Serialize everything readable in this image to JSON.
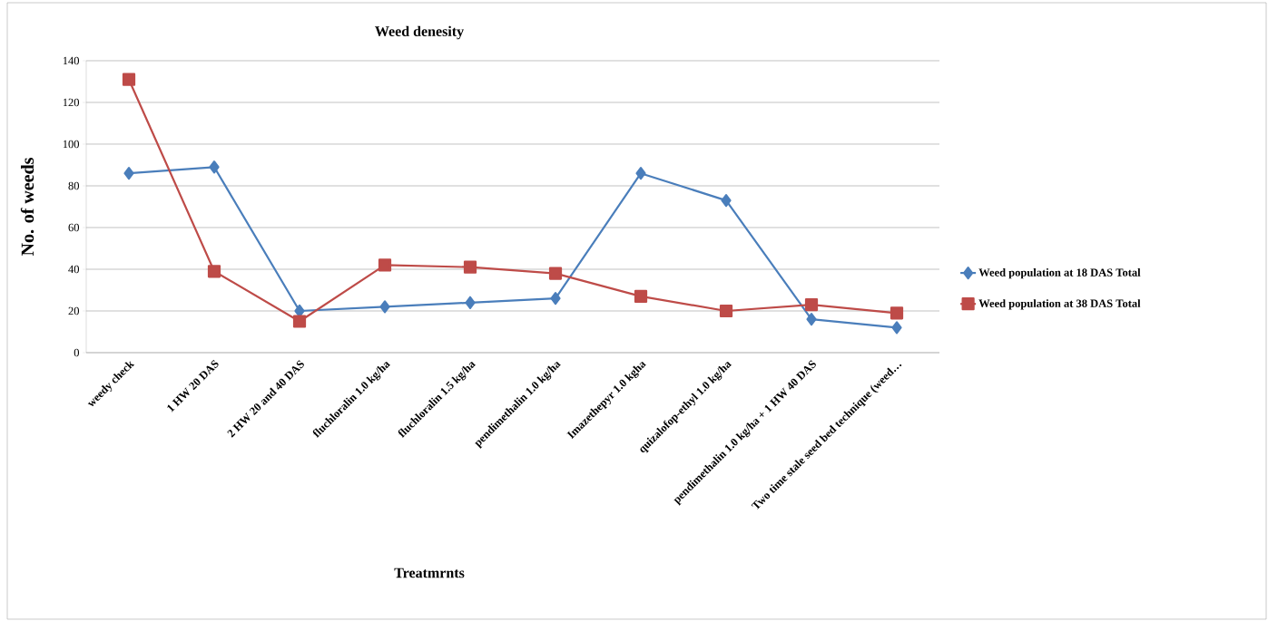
{
  "chart_data": {
    "type": "line",
    "title": "Weed denesity",
    "xlabel": "Treatmrnts",
    "ylabel": "No. of weeds",
    "categories": [
      "weedy check",
      "1 HW 20 DAS",
      "2 HW 20 and 40 DAS",
      "fluchloralin 1.0 kg/ha",
      "fluchloralin 1.5  kg/ha",
      "pendimethalin 1.0  kg/ha",
      "Imazethepyr 1.0 kgha",
      "quizalofop-ethyl 1.0 kg/ha",
      "pendimethalin 1.0 kg/ha + 1 HW 40 DAS",
      "Two time stale seed bed technique (weed…"
    ],
    "series": [
      {
        "name": "Weed population at 18 DAS Total",
        "color": "#4a7ebb",
        "marker": "diamond",
        "values": [
          86,
          89,
          20,
          22,
          24,
          26,
          86,
          73,
          16,
          12
        ]
      },
      {
        "name": "Weed population at 38 DAS Total",
        "color": "#be4b48",
        "marker": "square",
        "values": [
          131,
          39,
          15,
          42,
          41,
          38,
          27,
          20,
          23,
          19
        ]
      }
    ],
    "ylim": [
      0,
      140
    ],
    "yticks": [
      0,
      20,
      40,
      60,
      80,
      100,
      120,
      140
    ],
    "grid": "y",
    "legend": "right",
    "line_style": "solid"
  }
}
